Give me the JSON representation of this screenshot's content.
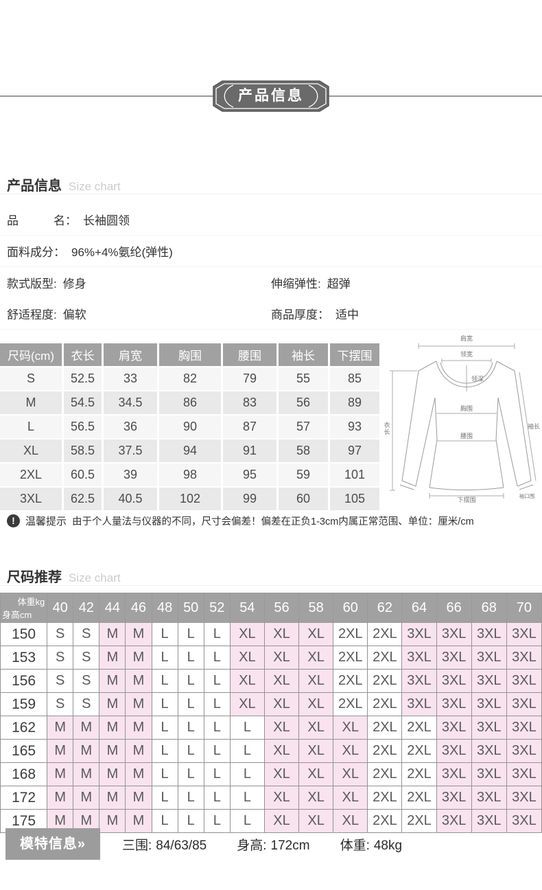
{
  "colors": {
    "banner_bg": "#6a6a6a",
    "table_header_bg": "#a1a1a1",
    "pink_cell": "#f9e3ee",
    "row_light": "#f6f6f6",
    "row_dark": "#e9e9e9",
    "border_gray": "#929292",
    "badge_bg": "#9c9c9c"
  },
  "banner": {
    "title": "产品信息"
  },
  "product_section": {
    "title": "产品信息",
    "subtitle": "Size chart",
    "attributes": {
      "name": {
        "label": "品　　　名：",
        "value": "长袖圆领"
      },
      "fabric": {
        "label": "面料成分：",
        "value": "96%+4%氨纶(弹性)"
      },
      "style": {
        "label": "款式版型:",
        "value": "修身"
      },
      "elastic": {
        "label": "伸缩弹性:",
        "value": "超弹"
      },
      "comfort": {
        "label": "舒适程度:",
        "value": "偏软"
      },
      "thickness": {
        "label": "商品厚度：",
        "value": "适中"
      }
    }
  },
  "size_table": {
    "headers": [
      "尺码(cm)",
      "衣长",
      "肩宽",
      "胸围",
      "腰围",
      "袖长",
      "下摆围"
    ],
    "rows": [
      [
        "S",
        "52.5",
        "33",
        "82",
        "79",
        "55",
        "85"
      ],
      [
        "M",
        "54.5",
        "34.5",
        "86",
        "83",
        "56",
        "89"
      ],
      [
        "L",
        "56.5",
        "36",
        "90",
        "87",
        "57",
        "93"
      ],
      [
        "XL",
        "58.5",
        "37.5",
        "94",
        "91",
        "58",
        "97"
      ],
      [
        "2XL",
        "60.5",
        "39",
        "98",
        "95",
        "59",
        "101"
      ],
      [
        "3XL",
        "62.5",
        "40.5",
        "102",
        "99",
        "60",
        "105"
      ]
    ]
  },
  "diagram": {
    "labels": {
      "shoulder": "肩宽",
      "collar_width": "领宽",
      "collar_depth": "领深",
      "length": "衣长",
      "bust": "胸围",
      "waist": "腰围",
      "sleeve": "袖长",
      "hem": "下摆围",
      "cuff": "袖口围"
    }
  },
  "warm_tip": {
    "icon_glyph": "!",
    "label": "温馨提示",
    "text": "由于个人量法与仪器的不同，尺寸会偏差！偏差在正负1-3cm内属正常范围、单位：厘米/cm"
  },
  "recommend_section": {
    "title": "尺码推荐",
    "subtitle": "Size chart"
  },
  "recommend_table": {
    "corner_top": "体重kg",
    "corner_bottom": "身高cm",
    "weights": [
      "40",
      "42",
      "44",
      "46",
      "48",
      "50",
      "52",
      "54",
      "56",
      "58",
      "60",
      "62",
      "64",
      "66",
      "68",
      "70"
    ],
    "pink_sizes": [
      "M",
      "XL",
      "3XL"
    ],
    "rows": [
      {
        "height": "150",
        "sizes": [
          "S",
          "S",
          "M",
          "M",
          "L",
          "L",
          "L",
          "XL",
          "XL",
          "XL",
          "2XL",
          "2XL",
          "3XL",
          "3XL",
          "3XL",
          "3XL"
        ]
      },
      {
        "height": "153",
        "sizes": [
          "S",
          "S",
          "M",
          "M",
          "L",
          "L",
          "L",
          "XL",
          "XL",
          "XL",
          "2XL",
          "2XL",
          "3XL",
          "3XL",
          "3XL",
          "3XL"
        ]
      },
      {
        "height": "156",
        "sizes": [
          "S",
          "S",
          "M",
          "M",
          "L",
          "L",
          "L",
          "XL",
          "XL",
          "XL",
          "2XL",
          "2XL",
          "3XL",
          "3XL",
          "3XL",
          "3XL"
        ]
      },
      {
        "height": "159",
        "sizes": [
          "S",
          "S",
          "M",
          "M",
          "L",
          "L",
          "L",
          "XL",
          "XL",
          "XL",
          "2XL",
          "2XL",
          "3XL",
          "3XL",
          "3XL",
          "3XL"
        ]
      },
      {
        "height": "162",
        "sizes": [
          "M",
          "M",
          "M",
          "M",
          "L",
          "L",
          "L",
          "L",
          "XL",
          "XL",
          "XL",
          "2XL",
          "2XL",
          "3XL",
          "3XL",
          "3XL"
        ]
      },
      {
        "height": "165",
        "sizes": [
          "M",
          "M",
          "M",
          "M",
          "L",
          "L",
          "L",
          "L",
          "XL",
          "XL",
          "XL",
          "2XL",
          "2XL",
          "3XL",
          "3XL",
          "3XL"
        ]
      },
      {
        "height": "168",
        "sizes": [
          "M",
          "M",
          "M",
          "M",
          "L",
          "L",
          "L",
          "L",
          "XL",
          "XL",
          "XL",
          "2XL",
          "2XL",
          "3XL",
          "3XL",
          "3XL"
        ]
      },
      {
        "height": "172",
        "sizes": [
          "M",
          "M",
          "M",
          "M",
          "L",
          "L",
          "L",
          "L",
          "XL",
          "XL",
          "XL",
          "2XL",
          "2XL",
          "3XL",
          "3XL",
          "3XL"
        ]
      },
      {
        "height": "175",
        "sizes": [
          "M",
          "M",
          "M",
          "M",
          "L",
          "L",
          "L",
          "L",
          "XL",
          "XL",
          "XL",
          "2XL",
          "2XL",
          "3XL",
          "3XL",
          "3XL"
        ]
      }
    ]
  },
  "model_info": {
    "badge": "模特信息»",
    "stats": [
      {
        "label": "三围:",
        "value": "84/63/85"
      },
      {
        "label": "身高:",
        "value": "172cm"
      },
      {
        "label": "体重:",
        "value": "48kg"
      }
    ]
  }
}
